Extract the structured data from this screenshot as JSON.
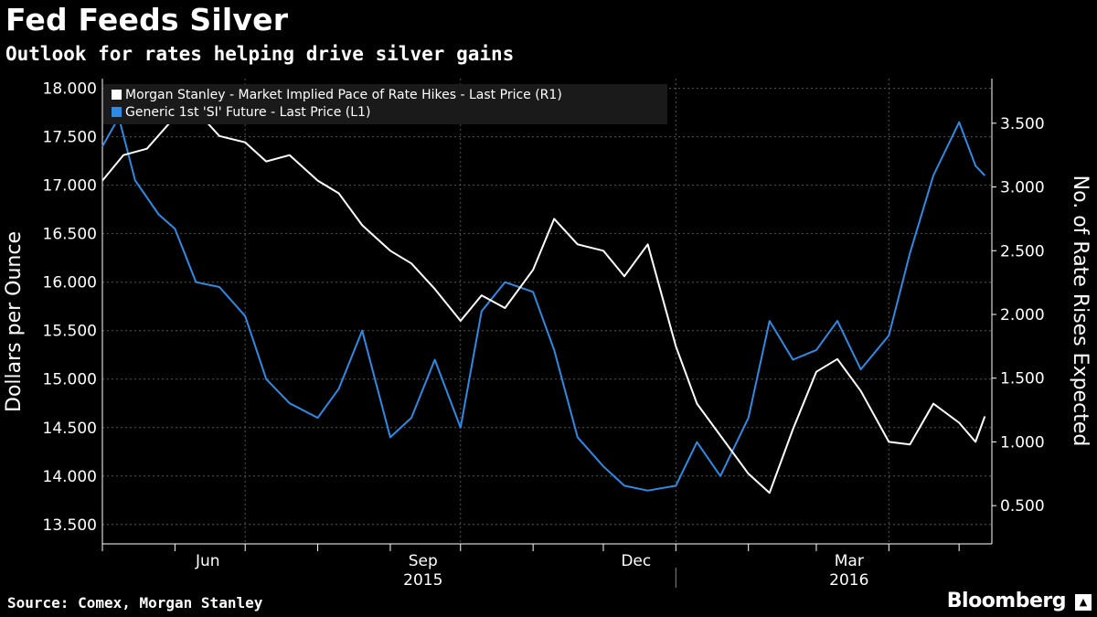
{
  "header": {
    "title": "Fed Feeds Silver",
    "subtitle": "Outlook for rates helping drive silver gains"
  },
  "footer": {
    "source": "Source: Comex, Morgan Stanley",
    "brand": "Bloomberg"
  },
  "chart_data": {
    "type": "line",
    "title": "Fed Feeds Silver",
    "subtitle": "Outlook for rates helping drive silver gains",
    "ylabel_left": "Dollars per Ounce",
    "ylabel_right": "No. of Rate Rises Expected",
    "ylim_left": [
      13.3,
      18.1
    ],
    "ylim_right": [
      0.2,
      3.85
    ],
    "yticks_left": [
      "18.000",
      "17.500",
      "17.000",
      "16.500",
      "16.000",
      "15.500",
      "15.000",
      "14.500",
      "14.000",
      "13.500"
    ],
    "yticks_right": [
      "3.500",
      "3.000",
      "2.500",
      "2.000",
      "1.500",
      "1.000",
      "0.500"
    ],
    "xlim": [
      "2015-05-01",
      "2016-05-15"
    ],
    "x_month_labels": [
      {
        "label": "Jun",
        "date": "2015-06-15"
      },
      {
        "label": "Sep",
        "date": "2015-09-15"
      },
      {
        "label": "Dec",
        "date": "2015-12-15"
      },
      {
        "label": "Mar",
        "date": "2016-03-15"
      }
    ],
    "x_year_labels": [
      {
        "label": "2015",
        "date": "2015-09-15"
      },
      {
        "label": "2016",
        "date": "2016-03-15"
      }
    ],
    "grid": true,
    "legend_position": "top-left",
    "series": [
      {
        "name": "Morgan Stanley - Market Implied Pace of Rate Hikes - Last Price (R1)",
        "axis": "right",
        "color": "#ffffff",
        "points": [
          [
            "2015-05-01",
            3.05
          ],
          [
            "2015-05-10",
            3.25
          ],
          [
            "2015-05-20",
            3.3
          ],
          [
            "2015-06-01",
            3.55
          ],
          [
            "2015-06-10",
            3.6
          ],
          [
            "2015-06-20",
            3.4
          ],
          [
            "2015-07-01",
            3.35
          ],
          [
            "2015-07-10",
            3.2
          ],
          [
            "2015-07-20",
            3.25
          ],
          [
            "2015-08-01",
            3.05
          ],
          [
            "2015-08-10",
            2.95
          ],
          [
            "2015-08-20",
            2.7
          ],
          [
            "2015-09-01",
            2.5
          ],
          [
            "2015-09-10",
            2.4
          ],
          [
            "2015-09-20",
            2.2
          ],
          [
            "2015-10-01",
            1.95
          ],
          [
            "2015-10-10",
            2.15
          ],
          [
            "2015-10-20",
            2.05
          ],
          [
            "2015-11-01",
            2.35
          ],
          [
            "2015-11-10",
            2.75
          ],
          [
            "2015-11-20",
            2.55
          ],
          [
            "2015-12-01",
            2.5
          ],
          [
            "2015-12-10",
            2.3
          ],
          [
            "2015-12-20",
            2.55
          ],
          [
            "2016-01-01",
            1.75
          ],
          [
            "2016-01-10",
            1.3
          ],
          [
            "2016-01-20",
            1.05
          ],
          [
            "2016-02-01",
            0.75
          ],
          [
            "2016-02-10",
            0.6
          ],
          [
            "2016-02-20",
            1.1
          ],
          [
            "2016-03-01",
            1.55
          ],
          [
            "2016-03-10",
            1.65
          ],
          [
            "2016-03-20",
            1.4
          ],
          [
            "2016-04-01",
            1.0
          ],
          [
            "2016-04-10",
            0.98
          ],
          [
            "2016-04-20",
            1.3
          ],
          [
            "2016-05-01",
            1.15
          ],
          [
            "2016-05-08",
            1.0
          ],
          [
            "2016-05-12",
            1.2
          ]
        ]
      },
      {
        "name": "Generic 1st 'SI' Future - Last Price (L1)",
        "axis": "left",
        "color": "#2f8ae4",
        "points": [
          [
            "2015-05-01",
            17.4
          ],
          [
            "2015-05-08",
            17.7
          ],
          [
            "2015-05-15",
            17.05
          ],
          [
            "2015-05-25",
            16.7
          ],
          [
            "2015-06-01",
            16.55
          ],
          [
            "2015-06-10",
            16.0
          ],
          [
            "2015-06-20",
            15.95
          ],
          [
            "2015-07-01",
            15.65
          ],
          [
            "2015-07-10",
            15.0
          ],
          [
            "2015-07-20",
            14.75
          ],
          [
            "2015-08-01",
            14.6
          ],
          [
            "2015-08-10",
            14.9
          ],
          [
            "2015-08-20",
            15.5
          ],
          [
            "2015-09-01",
            14.4
          ],
          [
            "2015-09-10",
            14.6
          ],
          [
            "2015-09-20",
            15.2
          ],
          [
            "2015-10-01",
            14.5
          ],
          [
            "2015-10-10",
            15.7
          ],
          [
            "2015-10-20",
            16.0
          ],
          [
            "2015-11-01",
            15.9
          ],
          [
            "2015-11-10",
            15.3
          ],
          [
            "2015-11-20",
            14.4
          ],
          [
            "2015-12-01",
            14.1
          ],
          [
            "2015-12-10",
            13.9
          ],
          [
            "2015-12-20",
            13.85
          ],
          [
            "2016-01-01",
            13.9
          ],
          [
            "2016-01-10",
            14.35
          ],
          [
            "2016-01-20",
            14.0
          ],
          [
            "2016-02-01",
            14.6
          ],
          [
            "2016-02-10",
            15.6
          ],
          [
            "2016-02-20",
            15.2
          ],
          [
            "2016-03-01",
            15.3
          ],
          [
            "2016-03-10",
            15.6
          ],
          [
            "2016-03-20",
            15.1
          ],
          [
            "2016-04-01",
            15.45
          ],
          [
            "2016-04-10",
            16.3
          ],
          [
            "2016-04-20",
            17.1
          ],
          [
            "2016-05-01",
            17.65
          ],
          [
            "2016-05-08",
            17.2
          ],
          [
            "2016-05-12",
            17.1
          ]
        ]
      }
    ]
  }
}
